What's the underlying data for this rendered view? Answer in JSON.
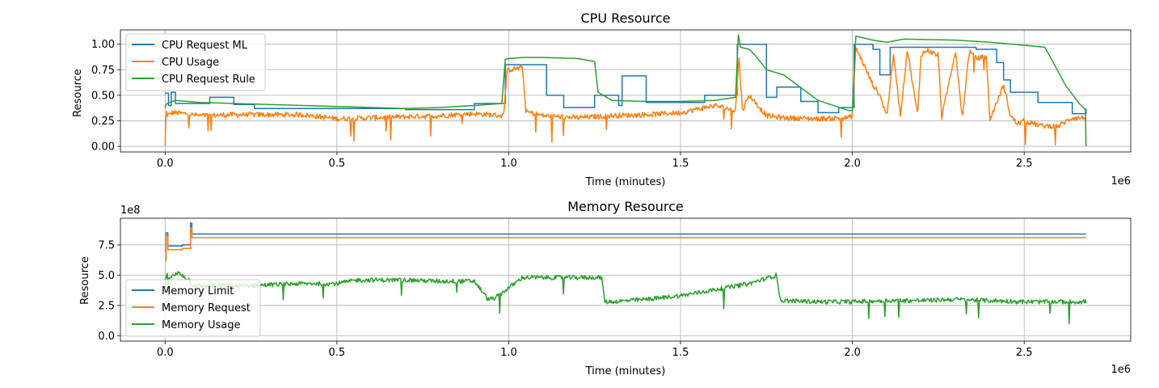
{
  "chart_data": [
    {
      "type": "line",
      "title": "CPU Resource",
      "xlabel": "Time (minutes)",
      "ylabel": "Resource",
      "x_offset_label": "1e6",
      "y_offset_label": "",
      "xlim": [
        -130000,
        2810000
      ],
      "ylim": [
        -0.055,
        1.14
      ],
      "xticks": [
        0,
        500000,
        1000000,
        1500000,
        2000000,
        2500000
      ],
      "xtick_labels": [
        "0.0",
        "0.5",
        "1.0",
        "1.5",
        "2.0",
        "2.5"
      ],
      "yticks": [
        0,
        0.25,
        0.5,
        0.75,
        1.0
      ],
      "ytick_labels": [
        "0.00",
        "0.25",
        "0.50",
        "0.75",
        "1.00"
      ],
      "grid": true,
      "legend_position": "upper-left",
      "series": [
        {
          "name": "CPU Request ML",
          "color": "#1f77b4",
          "step": true,
          "x": [
            0,
            10000,
            18000,
            30000,
            80000,
            130000,
            200000,
            260000,
            700000,
            720000,
            900000,
            990000,
            1000000,
            1110000,
            1160000,
            1250000,
            1320000,
            1330000,
            1400000,
            1470000,
            1550000,
            1570000,
            1650000,
            1665000,
            1675000,
            1690000,
            1750000,
            1780000,
            1850000,
            1900000,
            1960000,
            1995000,
            2005000,
            2060000,
            2080000,
            2110000,
            2200000,
            2360000,
            2420000,
            2440000,
            2460000,
            2540000,
            2640000,
            2680000
          ],
          "y": [
            0.52,
            0.4,
            0.53,
            0.42,
            0.42,
            0.48,
            0.41,
            0.37,
            0.36,
            0.36,
            0.42,
            0.8,
            0.8,
            0.5,
            0.38,
            0.5,
            0.4,
            0.69,
            0.43,
            0.43,
            0.43,
            0.5,
            0.5,
            1.0,
            1.0,
            1.0,
            0.48,
            0.58,
            0.44,
            0.33,
            0.38,
            0.38,
            1.0,
            0.95,
            0.7,
            0.97,
            0.97,
            0.95,
            0.82,
            0.65,
            0.53,
            0.43,
            0.32,
            0.37
          ]
        },
        {
          "name": "CPU Usage",
          "color": "#ff7f0e",
          "noise": 0.025,
          "x": [
            0,
            3000,
            8000,
            20000,
            60000,
            100000,
            200000,
            300000,
            400000,
            500000,
            600000,
            700000,
            800000,
            900000,
            985000,
            995000,
            1000000,
            1040000,
            1050000,
            1100000,
            1200000,
            1300000,
            1400000,
            1500000,
            1600000,
            1660000,
            1670000,
            1680000,
            1700000,
            1750000,
            1800000,
            1900000,
            1990000,
            2000000,
            2010000,
            2060000,
            2080000,
            2100000,
            2120000,
            2140000,
            2160000,
            2190000,
            2200000,
            2220000,
            2250000,
            2260000,
            2300000,
            2320000,
            2340000,
            2360000,
            2390000,
            2400000,
            2440000,
            2460000,
            2480000,
            2500000,
            2550000,
            2600000,
            2640000,
            2680000
          ],
          "y": [
            0.0,
            0.35,
            0.3,
            0.33,
            0.32,
            0.3,
            0.31,
            0.31,
            0.31,
            0.27,
            0.28,
            0.29,
            0.3,
            0.32,
            0.3,
            0.73,
            0.75,
            0.77,
            0.34,
            0.3,
            0.28,
            0.3,
            0.31,
            0.33,
            0.4,
            0.35,
            0.88,
            0.35,
            0.5,
            0.3,
            0.28,
            0.27,
            0.28,
            0.3,
            0.97,
            0.6,
            0.5,
            0.3,
            0.9,
            0.3,
            0.95,
            0.3,
            0.9,
            0.94,
            0.89,
            0.28,
            0.94,
            0.28,
            0.93,
            0.86,
            0.88,
            0.26,
            0.6,
            0.3,
            0.22,
            0.25,
            0.2,
            0.2,
            0.28,
            0.28
          ]
        },
        {
          "name": "CPU Request Rule",
          "color": "#2ca02c",
          "x": [
            0,
            5000,
            30000,
            100000,
            200000,
            300000,
            400000,
            500000,
            600000,
            700000,
            800000,
            900000,
            980000,
            990000,
            1000000,
            1040000,
            1100000,
            1200000,
            1250000,
            1260000,
            1300000,
            1400000,
            1500000,
            1600000,
            1660000,
            1668000,
            1675000,
            1700000,
            1720000,
            1750000,
            1800000,
            1900000,
            1990000,
            2000000,
            2010000,
            2060000,
            2100000,
            2150000,
            2300000,
            2400000,
            2500000,
            2560000,
            2580000,
            2620000,
            2660000,
            2678000,
            2680000
          ],
          "y": [
            0.38,
            0.42,
            0.45,
            0.43,
            0.42,
            0.41,
            0.4,
            0.39,
            0.38,
            0.37,
            0.38,
            0.4,
            0.42,
            0.85,
            0.86,
            0.87,
            0.87,
            0.86,
            0.83,
            0.53,
            0.45,
            0.44,
            0.44,
            0.45,
            0.48,
            1.09,
            0.97,
            0.95,
            0.88,
            0.75,
            0.7,
            0.45,
            0.35,
            0.35,
            1.08,
            1.04,
            1.02,
            1.05,
            1.04,
            1.02,
            0.99,
            0.97,
            0.85,
            0.6,
            0.42,
            0.36,
            0.0
          ]
        }
      ]
    },
    {
      "type": "line",
      "title": "Memory Resource",
      "xlabel": "Time (minutes)",
      "ylabel": "Resource",
      "x_offset_label": "1e6",
      "y_offset_label": "1e8",
      "xlim": [
        -130000,
        2810000
      ],
      "ylim": [
        -0.45,
        9.7
      ],
      "xticks": [
        0,
        500000,
        1000000,
        1500000,
        2000000,
        2500000
      ],
      "xtick_labels": [
        "0.0",
        "0.5",
        "1.0",
        "1.5",
        "2.0",
        "2.5"
      ],
      "yticks": [
        0,
        2.5,
        5.0,
        7.5
      ],
      "ytick_labels": [
        "0.0",
        "2.5",
        "5.0",
        "7.5"
      ],
      "grid": true,
      "legend_position": "lower-left",
      "series": [
        {
          "name": "Memory Limit",
          "color": "#1f77b4",
          "step": true,
          "x": [
            0,
            3000,
            8000,
            30000,
            50000,
            74000,
            78000,
            2680000
          ],
          "y": [
            7.0,
            8.5,
            7.4,
            7.4,
            7.5,
            9.3,
            8.4,
            8.4
          ]
        },
        {
          "name": "Memory Request",
          "color": "#ff7f0e",
          "step": true,
          "x": [
            0,
            3000,
            8000,
            30000,
            50000,
            74000,
            78000,
            2680000
          ],
          "y": [
            6.2,
            8.2,
            7.1,
            7.1,
            7.2,
            8.9,
            8.1,
            8.1
          ]
        },
        {
          "name": "Memory Usage",
          "color": "#2ca02c",
          "noise": 0.18,
          "x": [
            0,
            5000,
            15000,
            40000,
            70000,
            78000,
            100000,
            200000,
            300000,
            400000,
            500000,
            560000,
            600000,
            700000,
            800000,
            900000,
            940000,
            960000,
            1040000,
            1100000,
            1200000,
            1270000,
            1280000,
            1300000,
            1400000,
            1500000,
            1600000,
            1700000,
            1780000,
            1790000,
            1800000,
            1900000,
            2000000,
            2100000,
            2200000,
            2300000,
            2400000,
            2500000,
            2600000,
            2680000
          ],
          "y": [
            4.0,
            5.0,
            4.8,
            5.2,
            4.6,
            4.2,
            4.1,
            4.1,
            4.2,
            4.3,
            4.3,
            4.6,
            4.6,
            4.6,
            4.5,
            4.5,
            3.0,
            3.1,
            4.8,
            4.8,
            4.8,
            4.8,
            2.8,
            2.8,
            3.0,
            3.3,
            3.8,
            4.3,
            5.0,
            2.9,
            2.9,
            2.8,
            2.8,
            2.9,
            2.9,
            3.0,
            2.9,
            2.8,
            2.8,
            2.8
          ]
        }
      ]
    }
  ]
}
